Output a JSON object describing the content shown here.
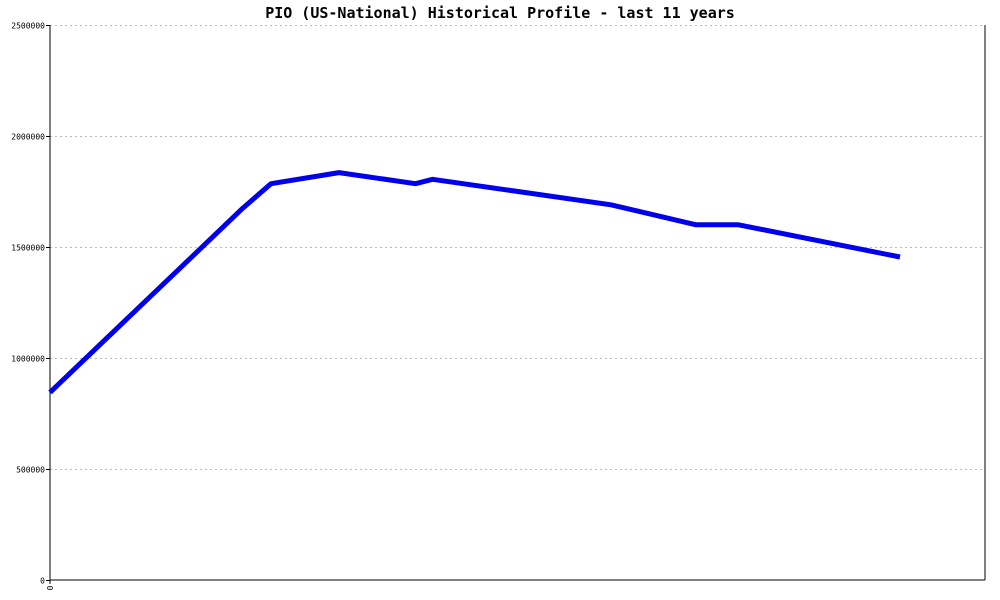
{
  "chart_data": {
    "type": "line",
    "title": "PIO (US-National) Historical Profile - last 11 years",
    "xlabel": "",
    "ylabel": "",
    "ylim": [
      0,
      2500000
    ],
    "yticks": [
      0,
      500000,
      1000000,
      1500000,
      2000000,
      2500000
    ],
    "ytick_labels": [
      "0",
      "500000",
      "1000000",
      "1500000",
      "2000000",
      "2500000"
    ],
    "xticks": [
      0
    ],
    "xtick_labels": [
      "0"
    ],
    "xlim": [
      0,
      11
    ],
    "grid": true,
    "legend": "none",
    "series": [
      {
        "color": "#0000ee",
        "x": [
          0,
          2.27,
          2.6,
          3.4,
          4.3,
          4.5,
          6.6,
          7.6,
          8.1,
          10
        ],
        "y": [
          845000,
          1675000,
          1785000,
          1835000,
          1785000,
          1805000,
          1690000,
          1600000,
          1600000,
          1455000
        ]
      }
    ]
  }
}
